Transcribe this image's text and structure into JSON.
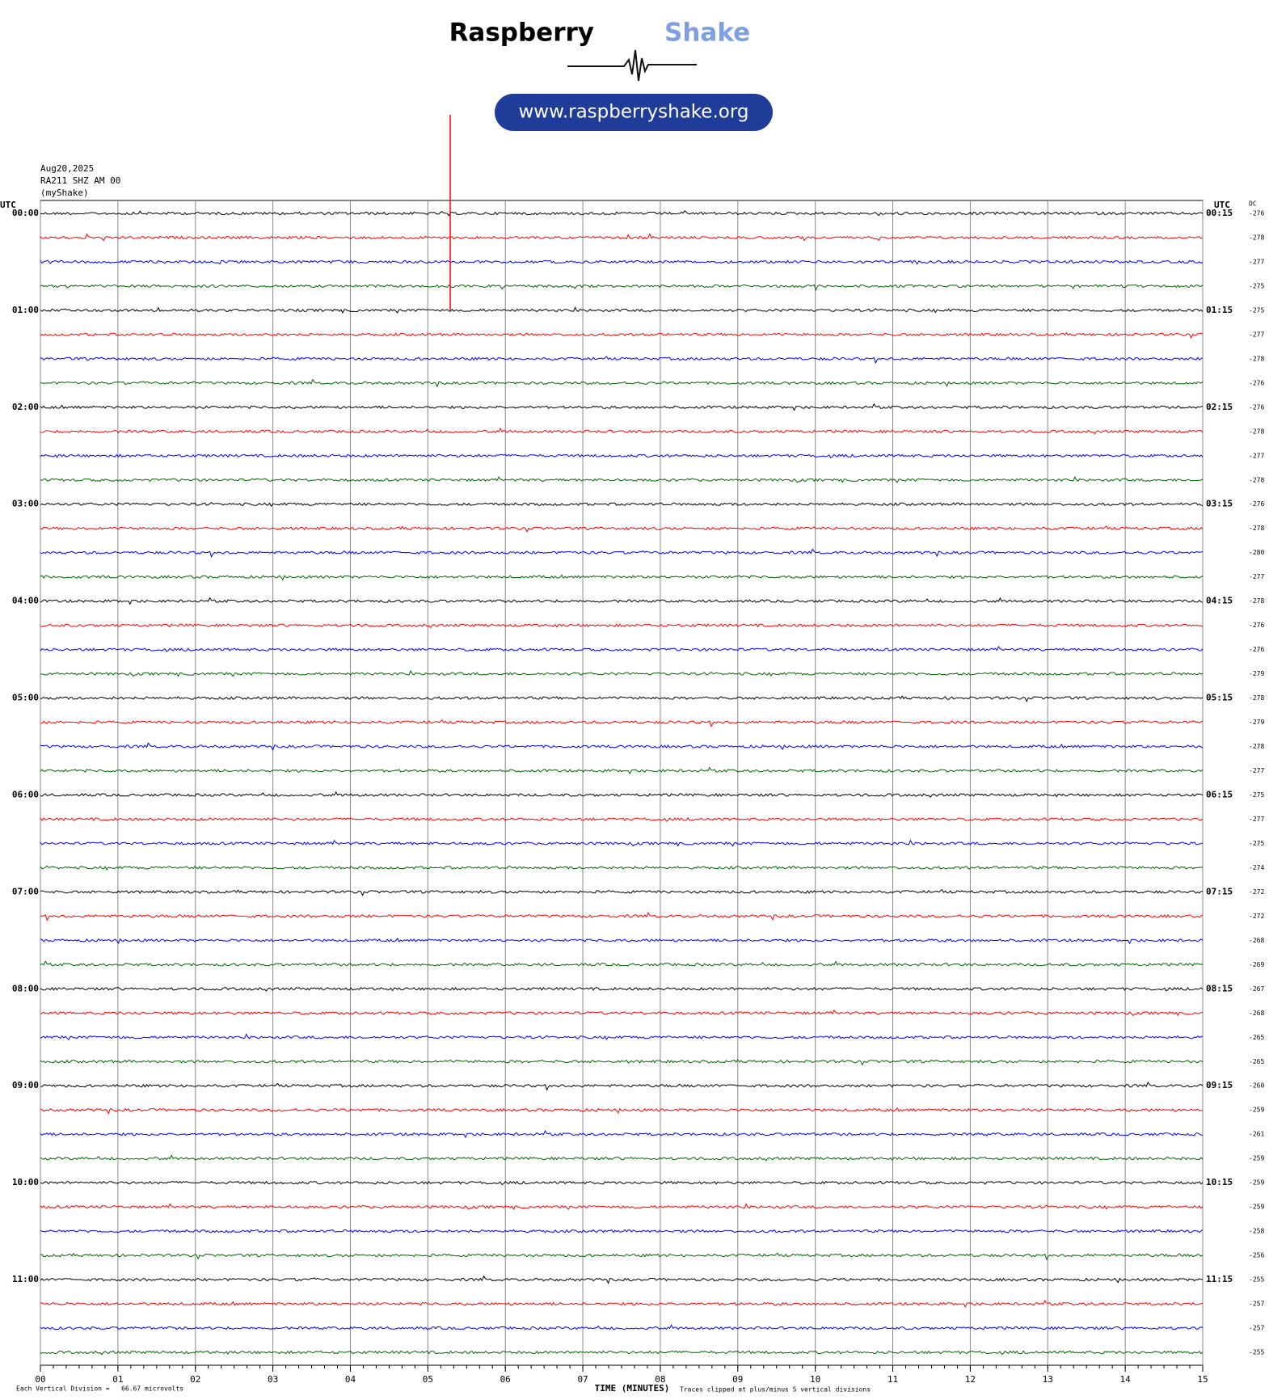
{
  "header": {
    "brand_1": "Raspberry",
    "brand_2": "Shake",
    "url": "www.raspberryshake.org",
    "date": "Aug20,2025",
    "station": "RA211 SHZ AM 00",
    "source": "(myShake)"
  },
  "chart_data": {
    "type": "helicorder",
    "left_axis_label": "UTC",
    "right_axis_label": "UTC",
    "dc_label": "DC",
    "left_times": [
      "00:00",
      "01:00",
      "02:00",
      "03:00",
      "04:00",
      "05:00",
      "06:00",
      "07:00",
      "08:00",
      "09:00",
      "10:00",
      "11:00"
    ],
    "right_times": [
      "00:15",
      "01:15",
      "02:15",
      "03:15",
      "04:15",
      "05:15",
      "06:15",
      "07:15",
      "08:15",
      "09:15",
      "10:15",
      "11:15"
    ],
    "colors": [
      "#000000",
      "#ff0000",
      "#0000ff",
      "#006400"
    ],
    "dc": [
      -276,
      -278,
      -277,
      -275,
      -275,
      -277,
      -278,
      -276,
      -276,
      -278,
      -277,
      -278,
      -276,
      -278,
      -280,
      -277,
      -278,
      -276,
      -276,
      -279,
      -278,
      -279,
      -278,
      -277,
      -275,
      -277,
      -275,
      -274,
      -272,
      -272,
      -268,
      -269,
      -267,
      -268,
      -265,
      -265,
      -260,
      -259,
      -261,
      -259,
      -259,
      -259,
      -258,
      -256,
      -255,
      -257,
      -257,
      -255
    ],
    "xlim": [
      0,
      15
    ],
    "xticks": [
      {
        "value": 0,
        "label": "00"
      },
      {
        "value": 1,
        "label": "01"
      },
      {
        "value": 2,
        "label": "02"
      },
      {
        "value": 3,
        "label": "03"
      },
      {
        "value": 4,
        "label": "04"
      },
      {
        "value": 5,
        "label": "05"
      },
      {
        "value": 6,
        "label": "06"
      },
      {
        "value": 7,
        "label": "07"
      },
      {
        "value": 8,
        "label": "08"
      },
      {
        "value": 9,
        "label": "09"
      },
      {
        "value": 10,
        "label": "10"
      },
      {
        "value": 11,
        "label": "11"
      },
      {
        "value": 12,
        "label": "12"
      },
      {
        "value": 13,
        "label": "13"
      },
      {
        "value": 14,
        "label": "14"
      },
      {
        "value": 15,
        "label": "15"
      }
    ],
    "grid": true,
    "xlabel": "TIME (MINUTES)",
    "footer_left": "Each Vertical Division =   66.67 microvolts",
    "footer_right": "Traces clipped at plus/minus 5 vertical divisions"
  }
}
